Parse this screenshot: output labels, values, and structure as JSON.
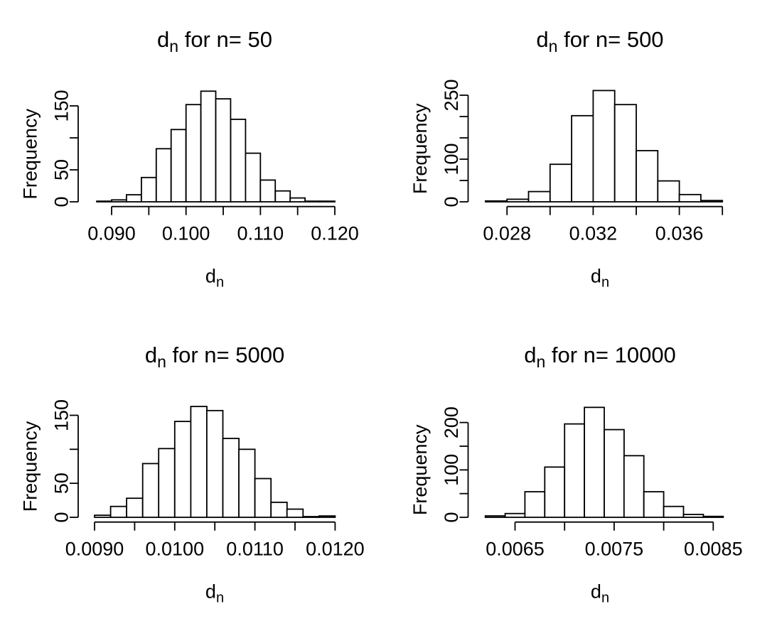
{
  "figure": {
    "background": "#ffffff",
    "stroke_color": "#000000",
    "text_color": "#000000",
    "layout": "2x2 histogram grid"
  },
  "chart_data": [
    {
      "type": "bar",
      "chart_kind": "histogram",
      "n_value": 50,
      "title": {
        "base": "d",
        "sub": "n",
        "rest": " for n= 50"
      },
      "xlabel": {
        "base": "d",
        "sub": "n"
      },
      "ylabel": "Frequency",
      "bins": {
        "start": 0.088,
        "width": 0.002
      },
      "counts": [
        1,
        3,
        11,
        38,
        83,
        113,
        152,
        173,
        161,
        129,
        76,
        34,
        17,
        6,
        1,
        1
      ],
      "x_ticks": [
        {
          "value": 0.09,
          "label": "0.090"
        },
        {
          "value": 0.095,
          "label": ""
        },
        {
          "value": 0.1,
          "label": "0.100"
        },
        {
          "value": 0.105,
          "label": ""
        },
        {
          "value": 0.11,
          "label": "0.110"
        },
        {
          "value": 0.115,
          "label": ""
        },
        {
          "value": 0.12,
          "label": "0.120"
        }
      ],
      "y_ticks": [
        {
          "value": 0,
          "label": "0"
        },
        {
          "value": 50,
          "label": "50"
        },
        {
          "value": 100,
          "label": ""
        },
        {
          "value": 150,
          "label": "150"
        }
      ],
      "xlim": [
        0.088,
        0.12
      ],
      "ylim": [
        0,
        175
      ],
      "grid": false,
      "legend": false
    },
    {
      "type": "bar",
      "chart_kind": "histogram",
      "n_value": 500,
      "title": {
        "base": "d",
        "sub": "n",
        "rest": " for n= 500"
      },
      "xlabel": {
        "base": "d",
        "sub": "n"
      },
      "ylabel": "Frequency",
      "bins": {
        "start": 0.027,
        "width": 0.001
      },
      "counts": [
        2,
        6,
        24,
        88,
        202,
        261,
        228,
        120,
        49,
        17,
        3
      ],
      "x_ticks": [
        {
          "value": 0.028,
          "label": "0.028"
        },
        {
          "value": 0.03,
          "label": ""
        },
        {
          "value": 0.032,
          "label": "0.032"
        },
        {
          "value": 0.034,
          "label": ""
        },
        {
          "value": 0.036,
          "label": "0.036"
        },
        {
          "value": 0.038,
          "label": ""
        }
      ],
      "y_ticks": [
        {
          "value": 0,
          "label": "0"
        },
        {
          "value": 50,
          "label": ""
        },
        {
          "value": 100,
          "label": "100"
        },
        {
          "value": 150,
          "label": ""
        },
        {
          "value": 200,
          "label": ""
        },
        {
          "value": 250,
          "label": "250"
        }
      ],
      "xlim": [
        0.027,
        0.038
      ],
      "ylim": [
        0,
        265
      ],
      "grid": false,
      "legend": false
    },
    {
      "type": "bar",
      "chart_kind": "histogram",
      "n_value": 5000,
      "title": {
        "base": "d",
        "sub": "n",
        "rest": " for n= 5000"
      },
      "xlabel": {
        "base": "d",
        "sub": "n"
      },
      "ylabel": "Frequency",
      "bins": {
        "start": 0.009,
        "width": 0.0002
      },
      "counts": [
        3,
        16,
        28,
        79,
        101,
        141,
        163,
        157,
        116,
        100,
        57,
        22,
        12,
        1,
        2
      ],
      "x_ticks": [
        {
          "value": 0.009,
          "label": "0.0090"
        },
        {
          "value": 0.0095,
          "label": ""
        },
        {
          "value": 0.01,
          "label": "0.0100"
        },
        {
          "value": 0.0105,
          "label": ""
        },
        {
          "value": 0.011,
          "label": "0.0110"
        },
        {
          "value": 0.0115,
          "label": ""
        },
        {
          "value": 0.012,
          "label": "0.0120"
        }
      ],
      "y_ticks": [
        {
          "value": 0,
          "label": "0"
        },
        {
          "value": 50,
          "label": "50"
        },
        {
          "value": 100,
          "label": ""
        },
        {
          "value": 150,
          "label": "150"
        }
      ],
      "xlim": [
        0.009,
        0.012
      ],
      "ylim": [
        0,
        165
      ],
      "grid": false,
      "legend": false
    },
    {
      "type": "bar",
      "chart_kind": "histogram",
      "n_value": 10000,
      "title": {
        "base": "d",
        "sub": "n",
        "rest": " for n= 10000"
      },
      "xlabel": {
        "base": "d",
        "sub": "n"
      },
      "ylabel": "Frequency",
      "bins": {
        "start": 0.0062,
        "width": 0.0002
      },
      "counts": [
        3,
        8,
        54,
        106,
        197,
        232,
        185,
        130,
        54,
        23,
        6,
        2
      ],
      "x_ticks": [
        {
          "value": 0.0065,
          "label": "0.0065"
        },
        {
          "value": 0.007,
          "label": ""
        },
        {
          "value": 0.0075,
          "label": "0.0075"
        },
        {
          "value": 0.008,
          "label": ""
        },
        {
          "value": 0.0085,
          "label": "0.0085"
        }
      ],
      "y_ticks": [
        {
          "value": 0,
          "label": "0"
        },
        {
          "value": 50,
          "label": ""
        },
        {
          "value": 100,
          "label": "100"
        },
        {
          "value": 150,
          "label": ""
        },
        {
          "value": 200,
          "label": "200"
        }
      ],
      "xlim": [
        0.0062,
        0.0086
      ],
      "ylim": [
        0,
        235
      ],
      "grid": false,
      "legend": false
    }
  ]
}
